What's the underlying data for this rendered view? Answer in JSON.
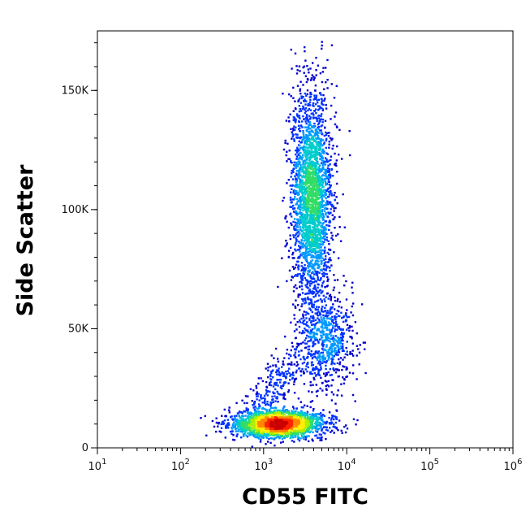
{
  "chart_data": {
    "type": "scatter",
    "title": "",
    "xlabel": "CD55 FITC",
    "ylabel": "Side Scatter",
    "x_scale": "log",
    "xlim": [
      10,
      1000000
    ],
    "ylim": [
      0,
      175000
    ],
    "x_ticks": [
      {
        "value": 10,
        "base": "10",
        "exp": "1"
      },
      {
        "value": 100,
        "base": "10",
        "exp": "2"
      },
      {
        "value": 1000,
        "base": "10",
        "exp": "3"
      },
      {
        "value": 10000,
        "base": "10",
        "exp": "4"
      },
      {
        "value": 100000,
        "base": "10",
        "exp": "5"
      },
      {
        "value": 1000000,
        "base": "10",
        "exp": "6"
      }
    ],
    "y_ticks": [
      {
        "value": 0,
        "label": "0"
      },
      {
        "value": 50000,
        "label": "50K"
      },
      {
        "value": 100000,
        "label": "100K"
      },
      {
        "value": 150000,
        "label": "150K"
      }
    ],
    "grid": false,
    "legend": "none",
    "density_colors": [
      "#0000cc",
      "#0033ff",
      "#0099ff",
      "#00cccc",
      "#33dd66",
      "#aaee00",
      "#ffee00",
      "#ff8800",
      "#ff2200",
      "#cc0000"
    ],
    "populations": [
      {
        "name": "",
        "x_center": 1500,
        "y_center": 10000,
        "count": 2200
      },
      {
        "name": "",
        "x_center": 3800,
        "y_center": 105000,
        "count": 2600
      },
      {
        "name": "",
        "x_center": 5500,
        "y_center": 45000,
        "count": 700
      }
    ]
  }
}
